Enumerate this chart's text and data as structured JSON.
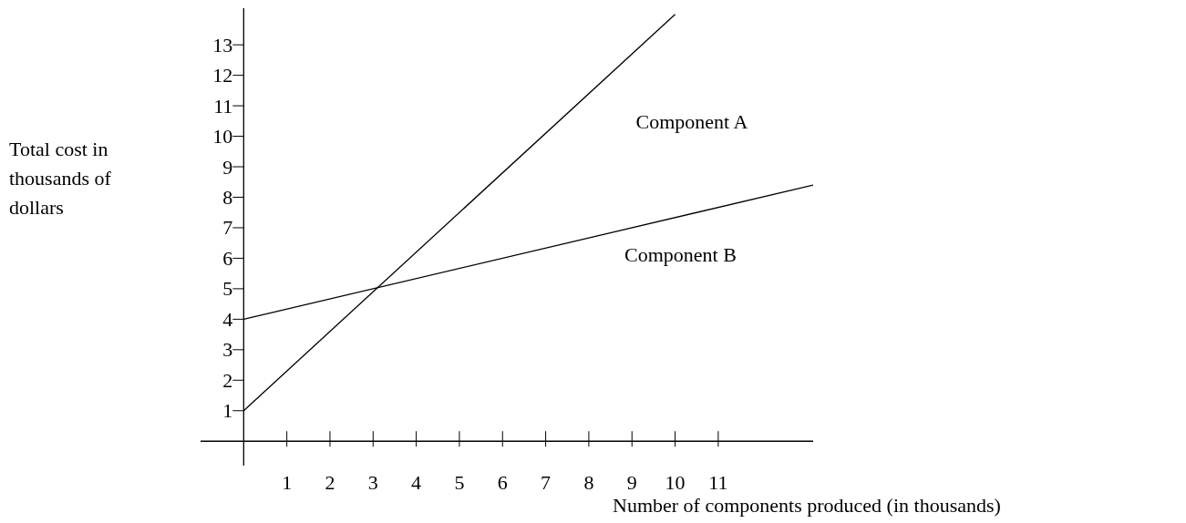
{
  "chart_data": {
    "type": "line",
    "xlabel": "Number of components produced (in thousands)",
    "ylabel": "Total cost in thousands of dollars",
    "series": [
      {
        "name": "Component A",
        "color": "#000000",
        "x": [
          0,
          10
        ],
        "values": [
          1,
          14
        ]
      },
      {
        "name": "Component B",
        "color": "#000000",
        "x": [
          0,
          13.2
        ],
        "values": [
          4,
          8.4
        ]
      }
    ],
    "xlim": [
      -1,
      13.2
    ],
    "ylim": [
      -0.8,
      14.2
    ],
    "xticks": [
      1,
      2,
      3,
      4,
      5,
      6,
      7,
      8,
      9,
      10,
      11
    ],
    "yticks": [
      1,
      2,
      3,
      4,
      5,
      6,
      7,
      8,
      9,
      10,
      11,
      12,
      13
    ],
    "grid": false,
    "legend": false,
    "marker": "none",
    "line_style": "solid"
  }
}
